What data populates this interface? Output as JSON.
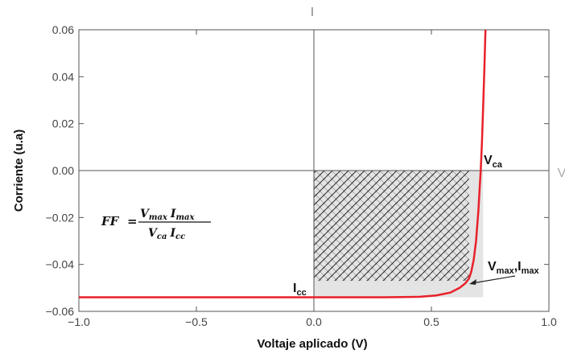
{
  "chart_data": {
    "type": "line",
    "xlabel": "Voltaje aplicado (V)",
    "ylabel": "Corriente (u.a)",
    "top_axis_label": "I",
    "right_axis_label": "V",
    "xlim": [
      -1.0,
      1.0
    ],
    "ylim": [
      -0.06,
      0.06
    ],
    "x_ticks": [
      "−1.0",
      "−0.5",
      "0.0",
      "0.5",
      "1.0"
    ],
    "x_tick_values": [
      -1.0,
      -0.5,
      0.0,
      0.5,
      1.0
    ],
    "y_ticks": [
      "0.06",
      "0.04",
      "0.02",
      "0.00",
      "−0.02",
      "−0.04",
      "−0.06"
    ],
    "y_tick_values": [
      0.06,
      0.04,
      0.02,
      0.0,
      -0.02,
      -0.04,
      -0.06
    ],
    "grid": false,
    "series": [
      {
        "color": "#e8202a",
        "x": [
          -1.0,
          -0.5,
          0.0,
          0.3,
          0.45,
          0.52,
          0.58,
          0.62,
          0.645,
          0.66,
          0.67,
          0.68,
          0.69,
          0.7,
          0.705,
          0.71,
          0.715,
          0.72,
          0.725,
          0.73
        ],
        "y": [
          -0.054,
          -0.054,
          -0.054,
          -0.054,
          -0.0538,
          -0.0532,
          -0.052,
          -0.05,
          -0.048,
          -0.046,
          -0.043,
          -0.038,
          -0.03,
          -0.017,
          -0.008,
          0.0,
          0.012,
          0.026,
          0.042,
          0.06
        ]
      }
    ],
    "annotations": {
      "voc": {
        "main": "V",
        "sub": "ca",
        "x": 0.72,
        "y": 0.0
      },
      "isc": {
        "main": "I",
        "sub": "cc",
        "x": 0.0,
        "y": -0.054
      },
      "mpp": {
        "v_main": "V",
        "v_sub": "max",
        "sep": ",",
        "i_main": "I",
        "i_sub": "max",
        "x": 0.66,
        "y": -0.047
      },
      "formula": {
        "lhs": "FF",
        "eq": "=",
        "num_v": "V",
        "num_v_sub": "max",
        "num_i": "I",
        "num_i_sub": "max",
        "den_v": "V",
        "den_v_sub": "ca",
        "den_i": "I",
        "den_i_sub": "cc"
      }
    },
    "colors": {
      "curve": "#e8202a",
      "axis": "#555555",
      "light_fill": "#e4e4e4",
      "hatch": "#222222"
    }
  }
}
